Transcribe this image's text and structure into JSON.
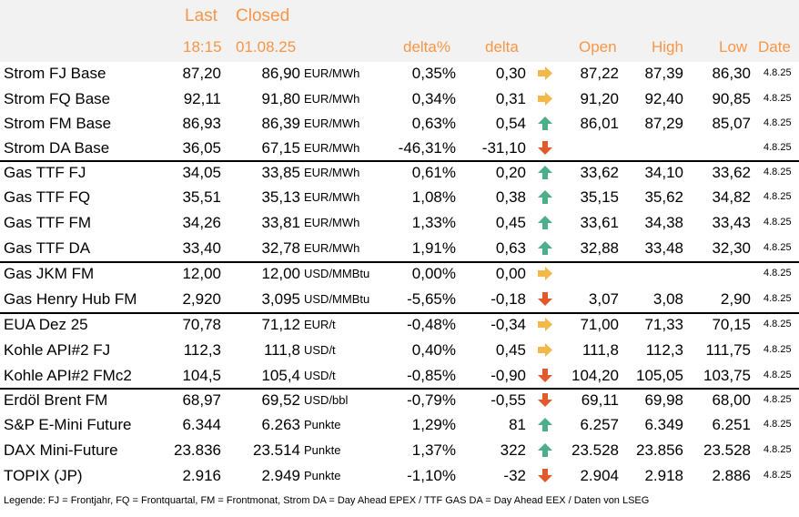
{
  "header": {
    "last": "Last",
    "closed": "Closed",
    "last_time": "18:15",
    "closed_date": "01.08.25",
    "delta_pct": "delta%",
    "delta": "delta",
    "open": "Open",
    "high": "High",
    "low": "Low",
    "date": "Date"
  },
  "colors": {
    "accent": "#f79646",
    "up": "#4caf8a",
    "down": "#e05a2b",
    "flat": "#f2b94a",
    "header_bg": "#f2f2f2"
  },
  "rows": [
    {
      "name": "Strom FJ Base",
      "last": "87,20",
      "closed": "86,90",
      "unit": "EUR/MWh",
      "dpct": "0,35%",
      "delta": "0,30",
      "trend": "flat",
      "open": "87,22",
      "high": "87,39",
      "low": "86,30",
      "date": "4.8.25"
    },
    {
      "name": "Strom FQ Base",
      "last": "92,11",
      "closed": "91,80",
      "unit": "EUR/MWh",
      "dpct": "0,34%",
      "delta": "0,31",
      "trend": "flat",
      "open": "91,20",
      "high": "92,40",
      "low": "90,85",
      "date": "4.8.25"
    },
    {
      "name": "Strom FM Base",
      "last": "86,93",
      "closed": "86,39",
      "unit": "EUR/MWh",
      "dpct": "0,63%",
      "delta": "0,54",
      "trend": "up",
      "open": "86,01",
      "high": "87,29",
      "low": "85,07",
      "date": "4.8.25"
    },
    {
      "name": "Strom DA Base",
      "last": "36,05",
      "closed": "67,15",
      "unit": "EUR/MWh",
      "dpct": "-46,31%",
      "delta": "-31,10",
      "trend": "down",
      "open": "",
      "high": "",
      "low": "",
      "date": "4.8.25"
    },
    {
      "name": "Gas TTF FJ",
      "last": "34,05",
      "closed": "33,85",
      "unit": "EUR/MWh",
      "dpct": "0,61%",
      "delta": "0,20",
      "trend": "up",
      "open": "33,62",
      "high": "34,10",
      "low": "33,62",
      "date": "4.8.25"
    },
    {
      "name": "Gas TTF FQ",
      "last": "35,51",
      "closed": "35,13",
      "unit": "EUR/MWh",
      "dpct": "1,08%",
      "delta": "0,38",
      "trend": "up",
      "open": "35,15",
      "high": "35,62",
      "low": "34,82",
      "date": "4.8.25"
    },
    {
      "name": "Gas TTF FM",
      "last": "34,26",
      "closed": "33,81",
      "unit": "EUR/MWh",
      "dpct": "1,33%",
      "delta": "0,45",
      "trend": "up",
      "open": "33,61",
      "high": "34,38",
      "low": "33,43",
      "date": "4.8.25"
    },
    {
      "name": "Gas TTF DA",
      "last": "33,40",
      "closed": "32,78",
      "unit": "EUR/MWh",
      "dpct": "1,91%",
      "delta": "0,63",
      "trend": "up",
      "open": "32,88",
      "high": "33,48",
      "low": "32,30",
      "date": "4.8.25"
    },
    {
      "name": "Gas JKM FM",
      "last": "12,00",
      "closed": "12,00",
      "unit": "USD/MMBtu",
      "dpct": "0,00%",
      "delta": "0,00",
      "trend": "flat",
      "open": "",
      "high": "",
      "low": "",
      "date": "4.8.25"
    },
    {
      "name": "Gas Henry Hub FM",
      "last": "2,920",
      "closed": "3,095",
      "unit": "USD/MMBtu",
      "dpct": "-5,65%",
      "delta": "-0,18",
      "trend": "down",
      "open": "3,07",
      "high": "3,08",
      "low": "2,90",
      "date": "4.8.25"
    },
    {
      "name": "EUA Dez 25",
      "last": "70,78",
      "closed": "71,12",
      "unit": "EUR/t",
      "dpct": "-0,48%",
      "delta": "-0,34",
      "trend": "flat",
      "open": "71,00",
      "high": "71,33",
      "low": "70,15",
      "date": "4.8.25"
    },
    {
      "name": "Kohle API#2 FJ",
      "last": "112,3",
      "closed": "111,8",
      "unit": "USD/t",
      "dpct": "0,40%",
      "delta": "0,45",
      "trend": "flat",
      "open": "111,8",
      "high": "112,3",
      "low": "111,75",
      "date": "4.8.25"
    },
    {
      "name": "Kohle API#2 FMc2",
      "last": "104,5",
      "closed": "105,4",
      "unit": "USD/t",
      "dpct": "-0,85%",
      "delta": "-0,90",
      "trend": "down",
      "open": "104,20",
      "high": "105,05",
      "low": "103,75",
      "date": "4.8.25"
    },
    {
      "name": "Erdöl Brent FM",
      "last": "68,97",
      "closed": "69,52",
      "unit": "USD/bbl",
      "dpct": "-0,79%",
      "delta": "-0,55",
      "trend": "down",
      "open": "69,11",
      "high": "69,98",
      "low": "68,00",
      "date": "4.8.25"
    },
    {
      "name": "S&P E-Mini Future",
      "last": "6.344",
      "closed": "6.263",
      "unit": "Punkte",
      "dpct": "1,29%",
      "delta": "81",
      "trend": "up",
      "open": "6.257",
      "high": "6.349",
      "low": "6.251",
      "date": "4.8.25"
    },
    {
      "name": "DAX Mini-Future",
      "last": "23.836",
      "closed": "23.514",
      "unit": "Punkte",
      "dpct": "1,37%",
      "delta": "322",
      "trend": "up",
      "open": "23.528",
      "high": "23.856",
      "low": "23.528",
      "date": "4.8.25"
    },
    {
      "name": "TOPIX (JP)",
      "last": "2.916",
      "closed": "2.949",
      "unit": "Punkte",
      "dpct": "-1,10%",
      "delta": "-32",
      "trend": "down",
      "open": "2.904",
      "high": "2.918",
      "low": "2.886",
      "date": "4.8.25"
    }
  ],
  "legend": "Legende: FJ = Frontjahr, FQ = Frontquartal, FM = Frontmonat, Strom DA = Day Ahead EPEX / TTF GAS DA = Day Ahead EEX / Daten von LSEG"
}
